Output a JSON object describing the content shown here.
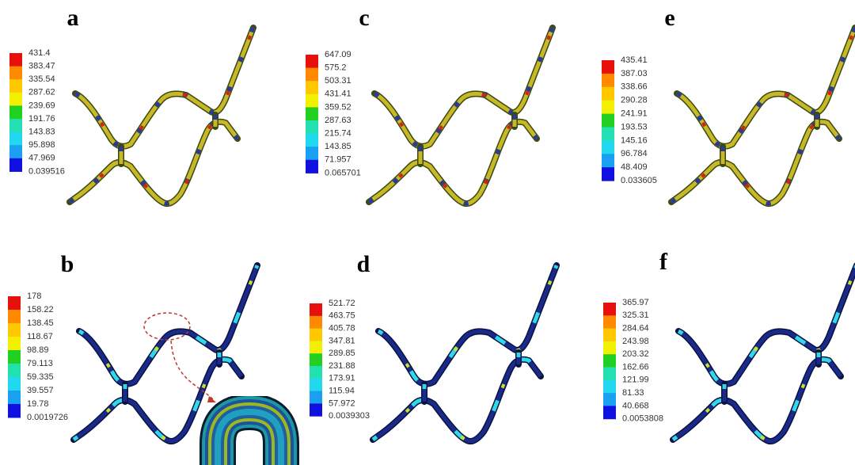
{
  "panels": [
    {
      "label": "a",
      "legend": [
        "431.4",
        "383.47",
        "335.54",
        "287.62",
        "239.69",
        "191.76",
        "143.83",
        "95.898",
        "47.969",
        "0.039516"
      ]
    },
    {
      "label": "c",
      "legend": [
        "647.09",
        "575.2",
        "503.31",
        "431.41",
        "359.52",
        "287.63",
        "215.74",
        "143.85",
        "71.957",
        "0.065701"
      ]
    },
    {
      "label": "e",
      "legend": [
        "435.41",
        "387.03",
        "338.66",
        "290.28",
        "241.91",
        "193.53",
        "145.16",
        "96.784",
        "48.409",
        "0.033605"
      ]
    },
    {
      "label": "b",
      "legend": [
        "178",
        "158.22",
        "138.45",
        "118.67",
        "98.89",
        "79.113",
        "59.335",
        "39.557",
        "19.78",
        "0.0019726"
      ]
    },
    {
      "label": "d",
      "legend": [
        "521.72",
        "463.75",
        "405.78",
        "347.81",
        "289.85",
        "231.88",
        "173.91",
        "115.94",
        "57.972",
        "0.0039303"
      ]
    },
    {
      "label": "f",
      "legend": [
        "365.97",
        "325.31",
        "284.64",
        "243.98",
        "203.32",
        "162.66",
        "121.99",
        "81.33",
        "40.668",
        "0.0053808"
      ]
    }
  ]
}
